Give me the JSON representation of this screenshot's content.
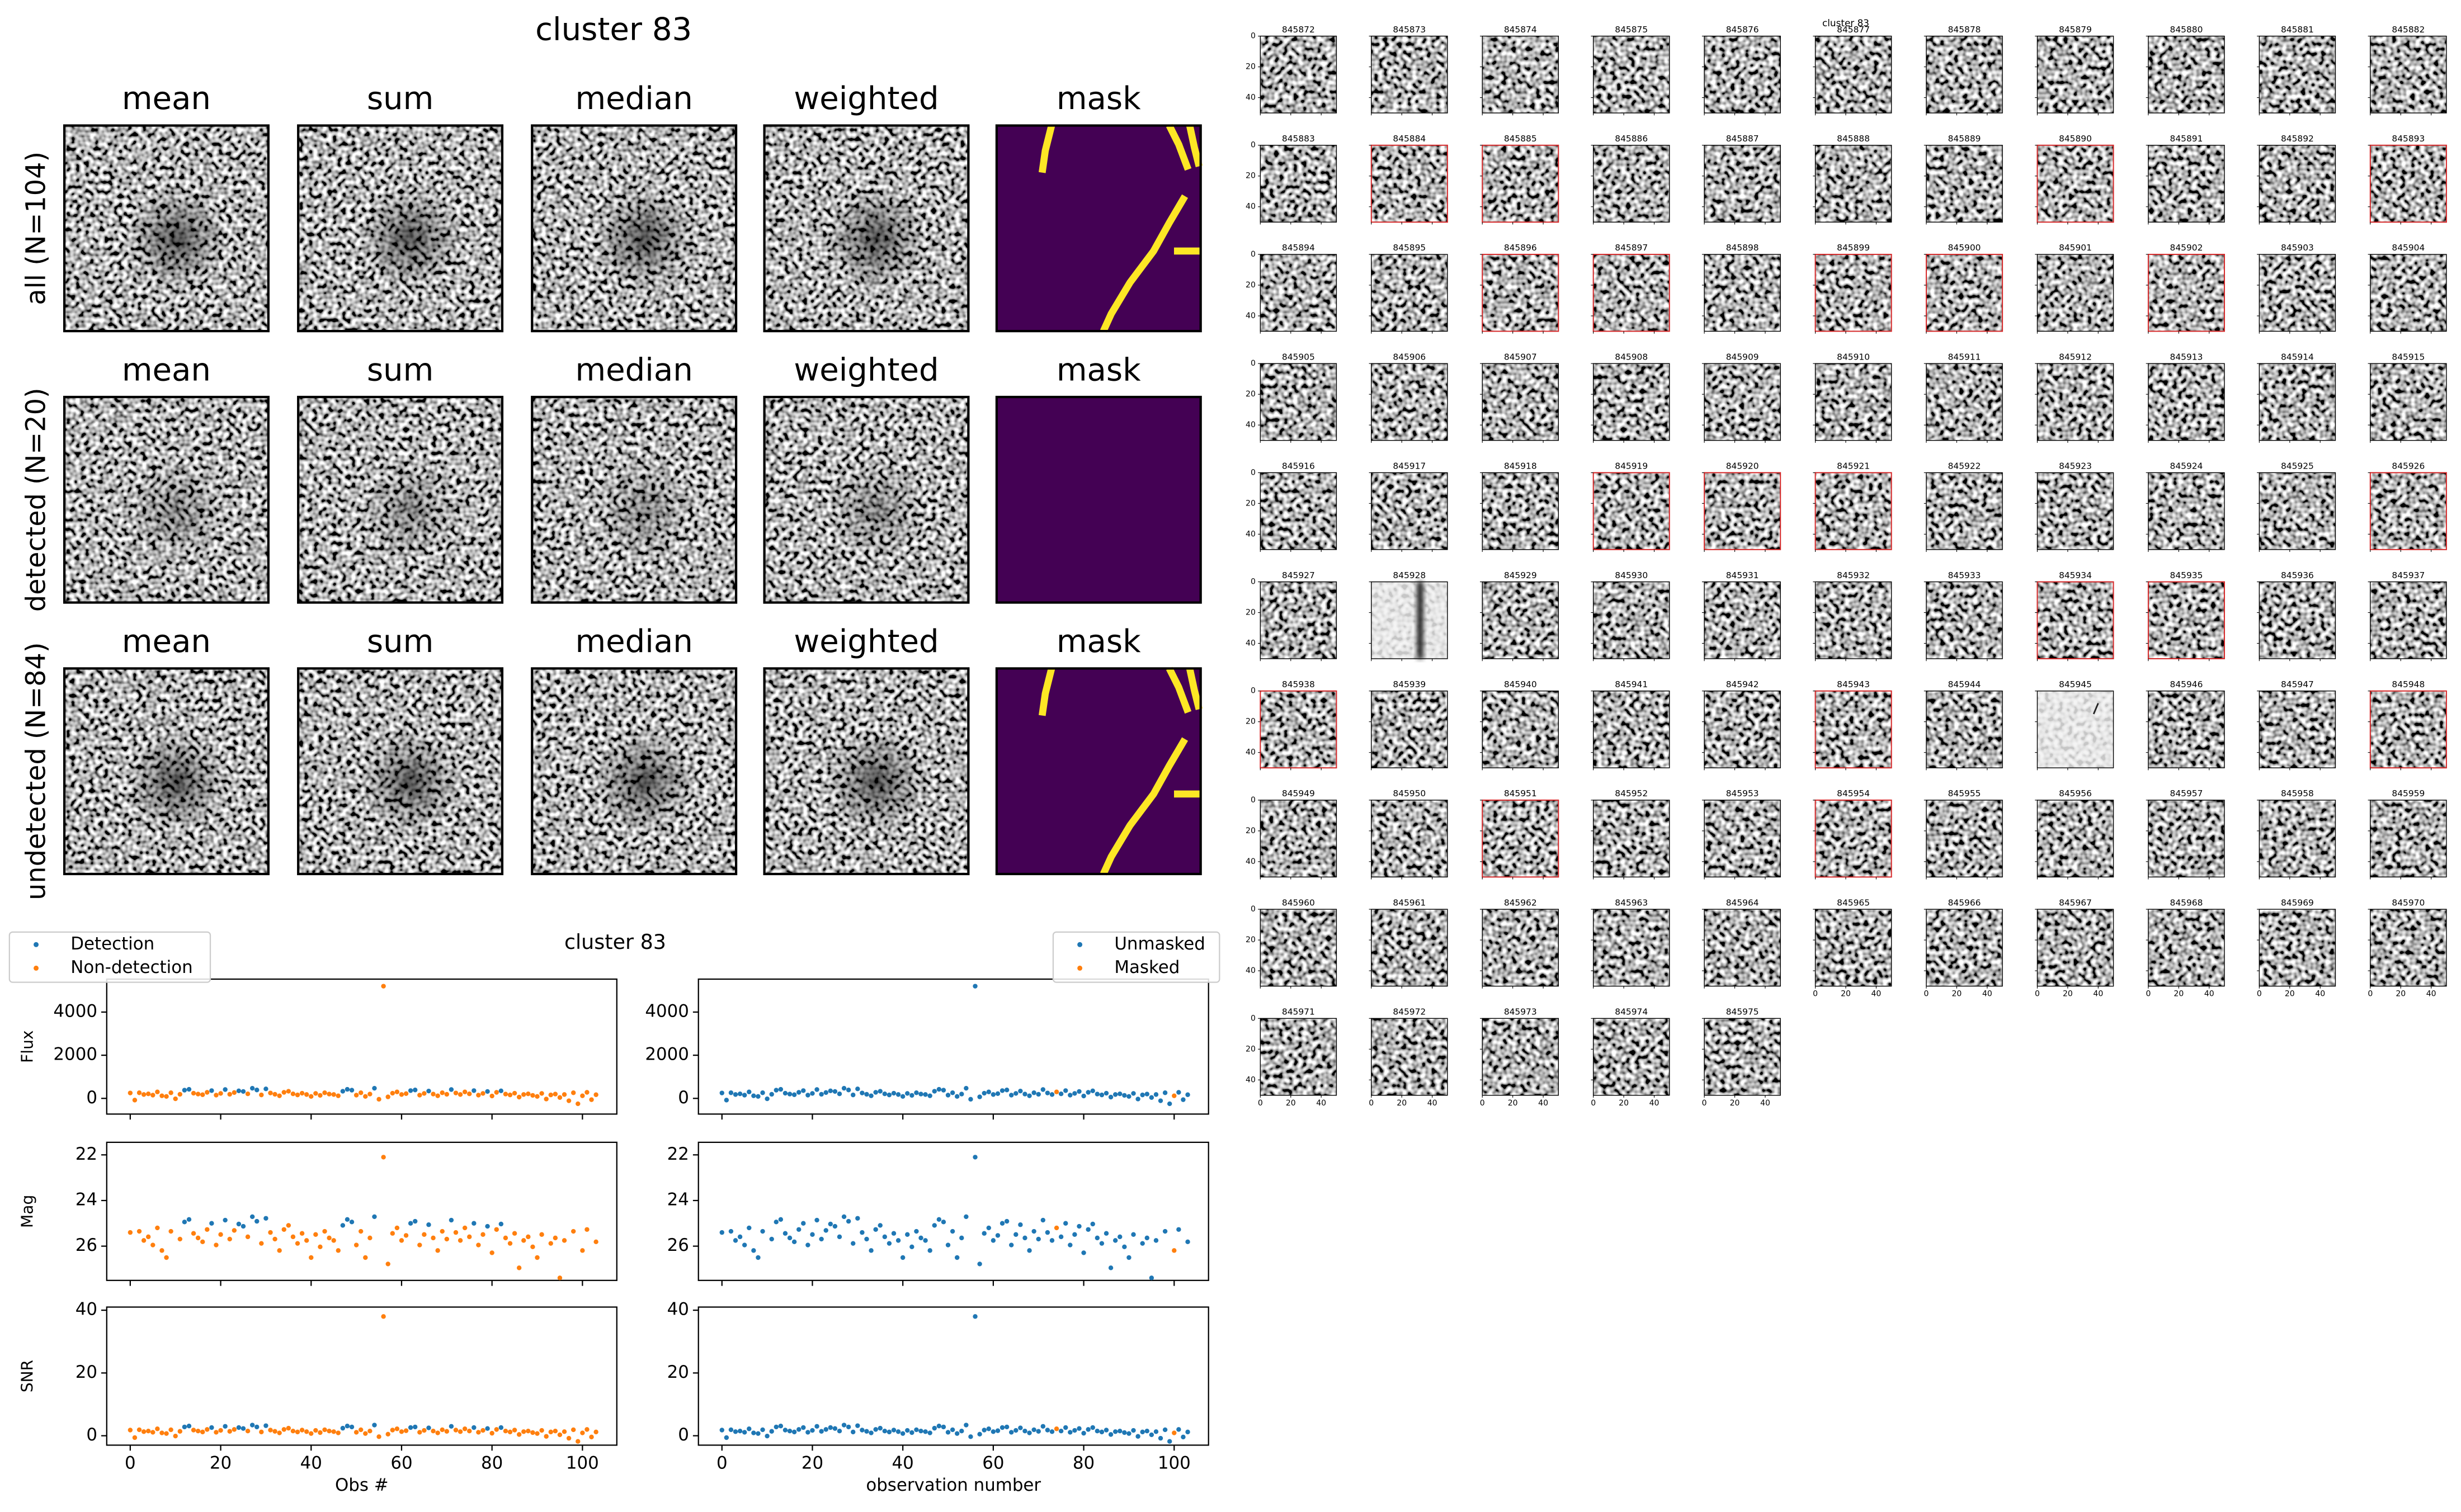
{
  "image_grid": {
    "title": "cluster 83",
    "columns": [
      "mean",
      "sum",
      "median",
      "weighted",
      "mask"
    ],
    "rows": [
      "all (N=104)",
      "detected (N=20)",
      "undetected (N=84)"
    ],
    "mask_colors": [
      "#440154",
      "#fde725"
    ]
  },
  "scatter_figure": {
    "type": "scatter",
    "title": "cluster 83",
    "xlim": [
      -5.2,
      107.6
    ],
    "xticks": [
      0,
      20,
      40,
      60,
      80,
      100
    ],
    "x": [
      0,
      1,
      2,
      3,
      4,
      5,
      6,
      7,
      8,
      9,
      10,
      11,
      12,
      13,
      14,
      15,
      16,
      17,
      18,
      19,
      20,
      21,
      22,
      23,
      24,
      25,
      26,
      27,
      28,
      29,
      30,
      31,
      32,
      33,
      34,
      35,
      36,
      37,
      38,
      39,
      40,
      41,
      42,
      43,
      44,
      45,
      46,
      47,
      48,
      49,
      50,
      51,
      52,
      53,
      54,
      55,
      56,
      57,
      58,
      59,
      60,
      61,
      62,
      63,
      64,
      65,
      66,
      67,
      68,
      69,
      70,
      71,
      72,
      73,
      74,
      75,
      76,
      77,
      78,
      79,
      80,
      81,
      82,
      83,
      84,
      85,
      86,
      87,
      88,
      89,
      90,
      91,
      92,
      93,
      94,
      95,
      96,
      97,
      98,
      99,
      100,
      101,
      102,
      103
    ],
    "panels": [
      {
        "ylabel": "Flux",
        "ylim": [
          -727,
          5527
        ],
        "yticks": [
          0,
          2000,
          4000
        ],
        "values": [
          250,
          -80,
          260,
          180,
          210,
          150,
          300,
          120,
          90,
          260,
          -20,
          190,
          380,
          420,
          240,
          200,
          170,
          280,
          360,
          150,
          230,
          410,
          190,
          270,
          350,
          320,
          210,
          470,
          390,
          160,
          440,
          250,
          190,
          120,
          280,
          330,
          210,
          160,
          240,
          180,
          90,
          230,
          140,
          260,
          200,
          180,
          120,
          330,
          420,
          380,
          150,
          260,
          90,
          200,
          470,
          -40,
          5200,
          70,
          240,
          300,
          180,
          220,
          360,
          390,
          150,
          230,
          340,
          200,
          120,
          260,
          190,
          410,
          250,
          180,
          300,
          210,
          360,
          150,
          230,
          320,
          110,
          280,
          350,
          200,
          160,
          240,
          60,
          180,
          210,
          140,
          90,
          230,
          -30,
          160,
          200,
          40,
          180,
          -110,
          260,
          -250,
          120,
          280,
          -60,
          170
        ]
      },
      {
        "ylabel": "Mag",
        "ylim": [
          27.5,
          21.45
        ],
        "yticks": [
          22,
          24,
          26
        ],
        "values": [
          25.4,
          null,
          25.35,
          25.75,
          25.59,
          25.95,
          25.2,
          26.19,
          26.5,
          25.35,
          null,
          25.69,
          24.94,
          24.83,
          25.44,
          25.64,
          25.81,
          25.27,
          25.0,
          25.95,
          25.49,
          24.86,
          25.69,
          25.31,
          25.03,
          25.13,
          25.59,
          24.71,
          24.91,
          25.88,
          24.78,
          25.4,
          25.69,
          26.19,
          25.27,
          25.09,
          25.59,
          25.88,
          25.44,
          25.75,
          26.5,
          25.49,
          26.03,
          25.35,
          25.64,
          25.75,
          26.19,
          25.09,
          24.83,
          24.94,
          25.95,
          25.35,
          26.5,
          25.64,
          24.71,
          null,
          22.1,
          26.78,
          25.44,
          25.2,
          25.75,
          25.53,
          25.0,
          24.91,
          25.95,
          25.49,
          25.06,
          25.64,
          26.19,
          25.35,
          25.69,
          24.86,
          25.4,
          25.75,
          25.2,
          25.59,
          25.0,
          25.95,
          25.49,
          25.13,
          26.29,
          25.27,
          25.03,
          25.64,
          25.88,
          25.44,
          26.95,
          25.75,
          25.59,
          26.03,
          26.5,
          25.49,
          null,
          25.88,
          25.64,
          27.39,
          25.75,
          null,
          25.35,
          null,
          26.19,
          25.27,
          null,
          25.81
        ]
      },
      {
        "ylabel": "SNR",
        "ylim": [
          -3,
          41
        ],
        "yticks": [
          0,
          20,
          40
        ],
        "values": [
          1.8,
          -0.6,
          1.9,
          1.3,
          1.5,
          1.1,
          2.2,
          0.9,
          0.7,
          1.9,
          -0.1,
          1.4,
          2.8,
          3.1,
          1.8,
          1.5,
          1.2,
          2.0,
          2.6,
          1.1,
          1.7,
          3.0,
          1.4,
          2.0,
          2.6,
          2.3,
          1.5,
          3.4,
          2.8,
          1.2,
          3.2,
          1.8,
          1.4,
          0.9,
          2.0,
          2.4,
          1.5,
          1.2,
          1.8,
          1.3,
          0.7,
          1.7,
          1.0,
          1.9,
          1.5,
          1.3,
          0.9,
          2.4,
          3.1,
          2.8,
          1.1,
          1.9,
          0.7,
          1.5,
          3.4,
          -0.3,
          38.0,
          0.5,
          1.8,
          2.2,
          1.3,
          1.6,
          2.6,
          2.8,
          1.1,
          1.7,
          2.5,
          1.5,
          0.9,
          1.9,
          1.4,
          3.0,
          1.8,
          1.3,
          2.2,
          1.5,
          2.6,
          1.1,
          1.7,
          2.3,
          0.8,
          2.0,
          2.6,
          1.5,
          1.2,
          1.8,
          0.4,
          1.3,
          1.5,
          1.0,
          0.7,
          1.7,
          -0.2,
          1.2,
          1.5,
          0.3,
          1.3,
          -0.8,
          1.9,
          -1.8,
          0.9,
          2.0,
          -0.4,
          1.2
        ]
      }
    ],
    "left": {
      "xlabel": "Obs #",
      "series": [
        {
          "name": "Detection",
          "color": "#1f77b4",
          "obs": [
            12,
            13,
            18,
            21,
            24,
            25,
            27,
            28,
            30,
            47,
            48,
            49,
            54,
            62,
            63,
            66,
            71,
            76,
            79,
            82
          ]
        },
        {
          "name": "Non-detection",
          "color": "#ff7f0e"
        }
      ]
    },
    "right": {
      "xlabel": "observation number",
      "series": [
        {
          "name": "Unmasked",
          "color": "#1f77b4"
        },
        {
          "name": "Masked",
          "color": "#ff7f0e",
          "obs": [
            74,
            100
          ]
        }
      ]
    }
  },
  "thumbnails": {
    "title": "cluster 83",
    "lim": [
      0,
      50
    ],
    "ticks": [
      0,
      20,
      40
    ],
    "ids": [
      845872,
      845873,
      845874,
      845875,
      845876,
      845877,
      845878,
      845879,
      845880,
      845881,
      845882,
      845883,
      845884,
      845885,
      845886,
      845887,
      845888,
      845889,
      845890,
      845891,
      845892,
      845893,
      845894,
      845895,
      845896,
      845897,
      845898,
      845899,
      845900,
      845901,
      845902,
      845903,
      845904,
      845905,
      845906,
      845907,
      845908,
      845909,
      845910,
      845911,
      845912,
      845913,
      845914,
      845915,
      845916,
      845917,
      845918,
      845919,
      845920,
      845921,
      845922,
      845923,
      845924,
      845925,
      845926,
      845927,
      845928,
      845929,
      845930,
      845931,
      845932,
      845933,
      845934,
      845935,
      845936,
      845937,
      845938,
      845939,
      845940,
      845941,
      845942,
      845943,
      845944,
      845945,
      845946,
      845947,
      845948,
      845949,
      845950,
      845951,
      845952,
      845953,
      845954,
      845955,
      845956,
      845957,
      845958,
      845959,
      845960,
      845961,
      845962,
      845963,
      845964,
      845965,
      845966,
      845967,
      845968,
      845969,
      845970,
      845971,
      845972,
      845973,
      845974,
      845975
    ],
    "highlighted": [
      845884,
      845885,
      845890,
      845893,
      845896,
      845897,
      845899,
      845900,
      845902,
      845919,
      845920,
      845921,
      845926,
      845934,
      845935,
      845938,
      845943,
      845948,
      845951,
      845954
    ],
    "highlight_color": "#d62728",
    "light_images": [
      845928,
      845945
    ]
  }
}
